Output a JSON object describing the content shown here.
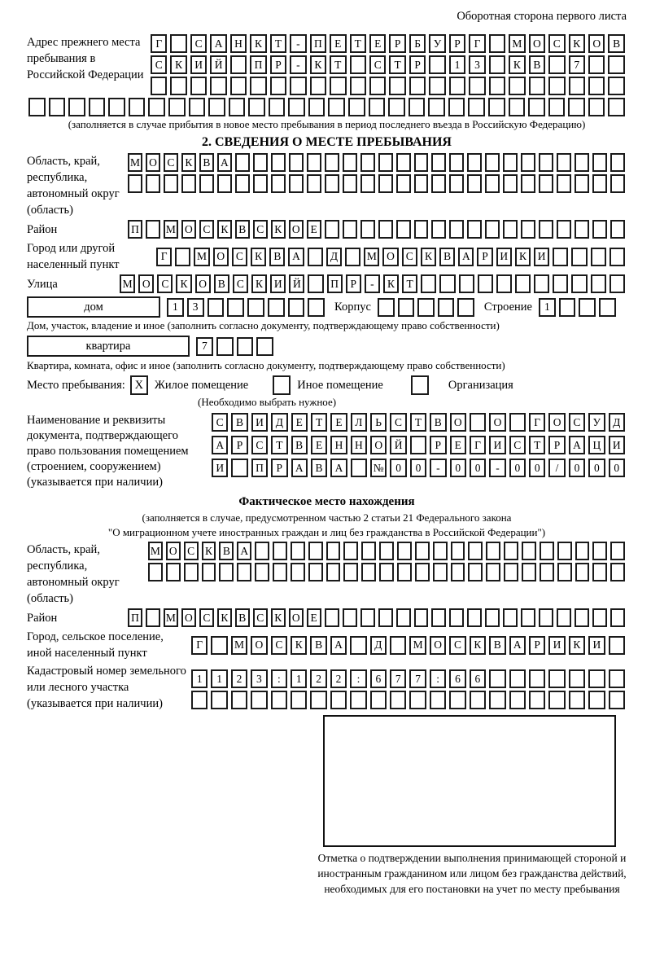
{
  "header": {
    "note": "Оборотная сторона первого листа"
  },
  "prev_address": {
    "label": "Адрес прежнего места пребывания в Российской Федерации",
    "rows": [
      {
        "text": "Г САНКТ-ПЕТЕРБУРГ МОСКОВ",
        "len": 24
      },
      {
        "text": "СКИЙ ПР-КТ СТР 13 КВ 7",
        "len": 24
      },
      {
        "text": "",
        "len": 24
      },
      {
        "text": "",
        "len": 30
      }
    ],
    "note": "(заполняется в случае прибытия в новое место пребывания в период последнего въезда в Российскую Федерацию)"
  },
  "section2": {
    "title": "2. СВЕДЕНИЯ О МЕСТЕ ПРЕБЫВАНИЯ",
    "region": {
      "label": "Область, край, республика, автономный округ (область)",
      "rows": [
        {
          "text": "МОСКВА",
          "len": 28
        },
        {
          "text": "",
          "len": 28
        }
      ]
    },
    "district": {
      "label": "Район",
      "row": {
        "text": "П МОСКВСКОЕ",
        "len": 28
      }
    },
    "city": {
      "label": "Город или другой населенный пункт",
      "row": {
        "text": "Г МОСКВА Д МОСКВАРИКИ",
        "len": 25
      }
    },
    "street": {
      "label": "Улица",
      "row": {
        "text": "МОСКОВСКИЙ ПР-КТ",
        "len": 27
      }
    },
    "house": {
      "box_label": "дом",
      "cells": {
        "text": "13",
        "len": 8
      },
      "korpus_label": "Корпус",
      "korpus_cells": {
        "text": "",
        "len": 5
      },
      "stroenie_label": "Строение",
      "stroenie_cells": {
        "text": "1",
        "len": 4
      },
      "note": "Дом, участок, владение и иное (заполнить согласно документу, подтверждающему право собственности)"
    },
    "apartment": {
      "box_label": "квартира",
      "cells": {
        "text": "7",
        "len": 4
      },
      "note": "Квартира, комната, офис и иное (заполнить согласно документу, подтверждающему право собственности)"
    },
    "stay_type": {
      "label": "Место пребывания:",
      "options": [
        {
          "label": "Жилое помещение",
          "mark": "X"
        },
        {
          "label": "Иное помещение",
          "mark": ""
        },
        {
          "label": "Организация",
          "mark": ""
        }
      ],
      "note": "(Необходимо выбрать нужное)"
    },
    "document": {
      "label": "Наименование и реквизиты документа, подтверждающего право пользования помещением (строением, сооружением) (указывается при наличии)",
      "rows": [
        {
          "text": "СВИДЕТЕЛЬСТВО О ГОСУД",
          "len": 21
        },
        {
          "text": "АРСТВЕННОЙ РЕГИСТРАЦИ",
          "len": 21
        },
        {
          "text": "И ПРАВА №00-00-00/000",
          "len": 21
        }
      ]
    }
  },
  "actual_location": {
    "title": "Фактическое место нахождения",
    "note_line1": "(заполняется в случае, предусмотренном частью 2 статьи 21 Федерального закона",
    "note_line2": "\"О миграционном учете иностранных граждан и лиц без гражданства в Российской Федерации\")",
    "region": {
      "label": "Область, край, республика, автономный округ (область)",
      "rows": [
        {
          "text": "МОСКВА",
          "len": 27
        },
        {
          "text": "",
          "len": 27
        }
      ]
    },
    "district": {
      "label": "Район",
      "row": {
        "text": "П МОСКВСКОЕ",
        "len": 28
      }
    },
    "city": {
      "label": "Город, сельское поселение, иной населенный пункт",
      "row": {
        "text": "Г МОСКВА Д МОСКВАРИКИ",
        "len": 22
      }
    },
    "cadastral": {
      "label": "Кадастровый номер земельного или лесного участка (указывается при наличии)",
      "rows": [
        {
          "text": "1123:122:677:66",
          "len": 22
        },
        {
          "text": "",
          "len": 22
        }
      ]
    }
  },
  "stamp": {
    "note": "Отметка о подтверждении выполнения принимающей стороной и иностранным гражданином или лицом без гражданства действий, необходимых для его постановки на учет по месту пребывания"
  }
}
